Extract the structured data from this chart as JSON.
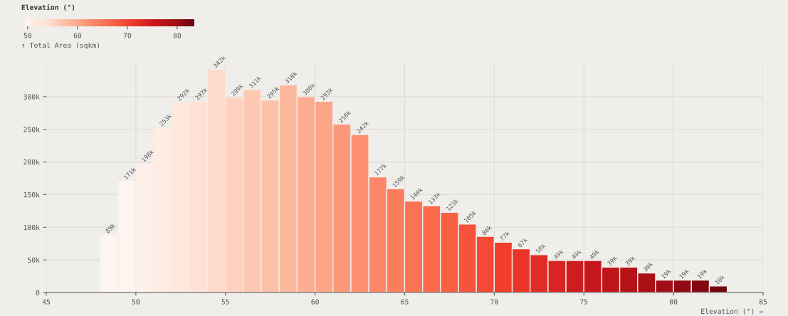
{
  "chart_data": {
    "type": "histogram",
    "bins": [
      48,
      49,
      50,
      51,
      52,
      53,
      54,
      55,
      56,
      57,
      58,
      59,
      60,
      61,
      62,
      63,
      64,
      65,
      66,
      67,
      68,
      69,
      70,
      71,
      72,
      73,
      74,
      75,
      76,
      77,
      78,
      79,
      80,
      81,
      82,
      83
    ],
    "values": [
      89000,
      171000,
      198000,
      253000,
      292000,
      293000,
      342000,
      299000,
      311000,
      295000,
      318000,
      300000,
      293000,
      258000,
      242000,
      177000,
      159000,
      140000,
      133000,
      123000,
      105000,
      86000,
      77000,
      67000,
      58000,
      49000,
      49000,
      49000,
      39000,
      39000,
      30000,
      19000,
      19000,
      19000,
      10000
    ],
    "value_labels": [
      "89k",
      "171k",
      "198k",
      "253k",
      "292k",
      "293k",
      "342k",
      "299k",
      "311k",
      "295k",
      "318k",
      "300k",
      "293k",
      "258k",
      "242k",
      "177k",
      "159k",
      "140k",
      "133k",
      "123k",
      "105k",
      "86k",
      "77k",
      "67k",
      "58k",
      "49k",
      "49k",
      "49k",
      "39k",
      "39k",
      "30k",
      "19k",
      "19k",
      "19k",
      "10k"
    ],
    "xlabel": "Elevation (°) →",
    "ylabel": "↑ Total Area (sqkm)",
    "clabel": "Elevation (°)",
    "clim": [
      49.5,
      83.5
    ],
    "cticks": [
      50,
      60,
      70,
      80
    ],
    "xlim": [
      45,
      85
    ],
    "xticks": [
      45,
      50,
      55,
      60,
      65,
      70,
      75,
      80,
      85
    ],
    "ylim": [
      0,
      350000
    ],
    "yticks": [
      0,
      {
        "value": 50000,
        "label": "50k"
      },
      {
        "value": 100000,
        "label": "100k"
      },
      {
        "value": 150000,
        "label": "150k"
      },
      {
        "value": 200000,
        "label": "200k"
      },
      {
        "value": 250000,
        "label": "250k"
      },
      {
        "value": 300000,
        "label": "300k"
      }
    ],
    "grid": true
  }
}
